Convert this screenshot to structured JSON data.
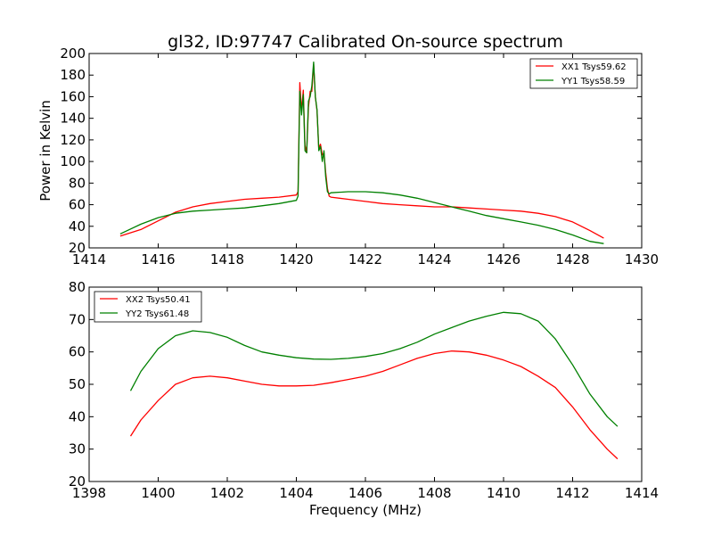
{
  "colors": {
    "xx": "#ff0000",
    "yy": "#008000",
    "axes": "#000000",
    "background": "#ffffff"
  },
  "chart_data": [
    {
      "type": "line",
      "title": "gl32, ID:97747 Calibrated On-source spectrum",
      "xlabel": "",
      "ylabel": "Power in Kelvin",
      "xlim": [
        1414,
        1430
      ],
      "ylim": [
        20,
        200
      ],
      "xticks": [
        1414,
        1416,
        1418,
        1420,
        1422,
        1424,
        1426,
        1428,
        1430
      ],
      "yticks": [
        20,
        40,
        60,
        80,
        100,
        120,
        140,
        160,
        180,
        200
      ],
      "legend_position": "top-right",
      "series": [
        {
          "name": "XX1 Tsys59.62",
          "color_key": "xx",
          "x": [
            1414.9,
            1415.5,
            1416.0,
            1416.5,
            1417.0,
            1417.5,
            1418.0,
            1418.5,
            1419.0,
            1419.5,
            1420.0,
            1420.05,
            1420.1,
            1420.15,
            1420.2,
            1420.25,
            1420.3,
            1420.35,
            1420.4,
            1420.45,
            1420.5,
            1420.55,
            1420.6,
            1420.65,
            1420.7,
            1420.75,
            1420.8,
            1420.85,
            1420.9,
            1420.95,
            1421.0,
            1421.5,
            1422.0,
            1422.5,
            1423.0,
            1423.5,
            1424.0,
            1424.5,
            1425.0,
            1425.5,
            1426.0,
            1426.5,
            1427.0,
            1427.5,
            1428.0,
            1428.5,
            1428.9
          ],
          "y": [
            31,
            37,
            45,
            53,
            58,
            61,
            63,
            65,
            66,
            67,
            69,
            72,
            173,
            147,
            166,
            115,
            108,
            150,
            165,
            165,
            190,
            160,
            147,
            112,
            116,
            106,
            108,
            90,
            75,
            68,
            67,
            65,
            63,
            61,
            60,
            59,
            58,
            58,
            57,
            56,
            55,
            54,
            52,
            49,
            44,
            36,
            29
          ]
        },
        {
          "name": "YY1 Tsys58.59",
          "color_key": "yy",
          "x": [
            1414.9,
            1415.5,
            1416.0,
            1416.5,
            1417.0,
            1417.5,
            1418.0,
            1418.5,
            1419.0,
            1419.5,
            1420.0,
            1420.05,
            1420.1,
            1420.15,
            1420.2,
            1420.25,
            1420.3,
            1420.35,
            1420.4,
            1420.45,
            1420.5,
            1420.55,
            1420.6,
            1420.65,
            1420.7,
            1420.75,
            1420.8,
            1420.85,
            1420.9,
            1420.95,
            1421.0,
            1421.5,
            1422.0,
            1422.5,
            1423.0,
            1423.5,
            1424.0,
            1424.5,
            1425.0,
            1425.5,
            1426.0,
            1426.5,
            1427.0,
            1427.5,
            1428.0,
            1428.5,
            1428.9
          ],
          "y": [
            33,
            42,
            48,
            52,
            54,
            55,
            56,
            57,
            59,
            61,
            64,
            68,
            165,
            143,
            162,
            110,
            108,
            156,
            160,
            170,
            192,
            160,
            148,
            110,
            114,
            100,
            110,
            86,
            72,
            70,
            71,
            72,
            72,
            71,
            69,
            66,
            62,
            58,
            54,
            50,
            47,
            44,
            41,
            37,
            32,
            26,
            24
          ]
        }
      ]
    },
    {
      "type": "line",
      "title": "",
      "xlabel": "Frequency (MHz)",
      "ylabel": "",
      "xlim": [
        1398,
        1414
      ],
      "ylim": [
        20,
        80
      ],
      "xticks": [
        1398,
        1400,
        1402,
        1404,
        1406,
        1408,
        1410,
        1412,
        1414
      ],
      "yticks": [
        20,
        30,
        40,
        50,
        60,
        70,
        80
      ],
      "legend_position": "top-left",
      "series": [
        {
          "name": "XX2 Tsys50.41",
          "color_key": "xx",
          "x": [
            1399.2,
            1399.5,
            1400.0,
            1400.5,
            1401.0,
            1401.5,
            1402.0,
            1402.5,
            1403.0,
            1403.5,
            1404.0,
            1404.5,
            1405.0,
            1405.5,
            1406.0,
            1406.5,
            1407.0,
            1407.5,
            1408.0,
            1408.5,
            1409.0,
            1409.5,
            1410.0,
            1410.5,
            1411.0,
            1411.5,
            1412.0,
            1412.5,
            1413.0,
            1413.3
          ],
          "y": [
            34,
            39,
            45,
            50,
            52,
            52.5,
            52,
            51,
            50,
            49.5,
            49.5,
            49.7,
            50.5,
            51.5,
            52.5,
            54,
            56,
            58,
            59.5,
            60.3,
            60,
            59,
            57.5,
            55.5,
            52.5,
            49,
            43,
            36,
            30,
            27
          ]
        },
        {
          "name": "YY2 Tsys61.48",
          "color_key": "yy",
          "x": [
            1399.2,
            1399.5,
            1400.0,
            1400.5,
            1401.0,
            1401.5,
            1402.0,
            1402.5,
            1403.0,
            1403.5,
            1404.0,
            1404.5,
            1405.0,
            1405.5,
            1406.0,
            1406.5,
            1407.0,
            1407.5,
            1408.0,
            1408.5,
            1409.0,
            1409.5,
            1410.0,
            1410.5,
            1411.0,
            1411.5,
            1412.0,
            1412.5,
            1413.0,
            1413.3
          ],
          "y": [
            48,
            54,
            61,
            65,
            66.5,
            66,
            64.5,
            62,
            60,
            59,
            58.2,
            57.8,
            57.7,
            58,
            58.6,
            59.5,
            61,
            63,
            65.5,
            67.5,
            69.5,
            71,
            72.2,
            71.8,
            69.5,
            64,
            56,
            47,
            40,
            37
          ]
        }
      ]
    }
  ]
}
